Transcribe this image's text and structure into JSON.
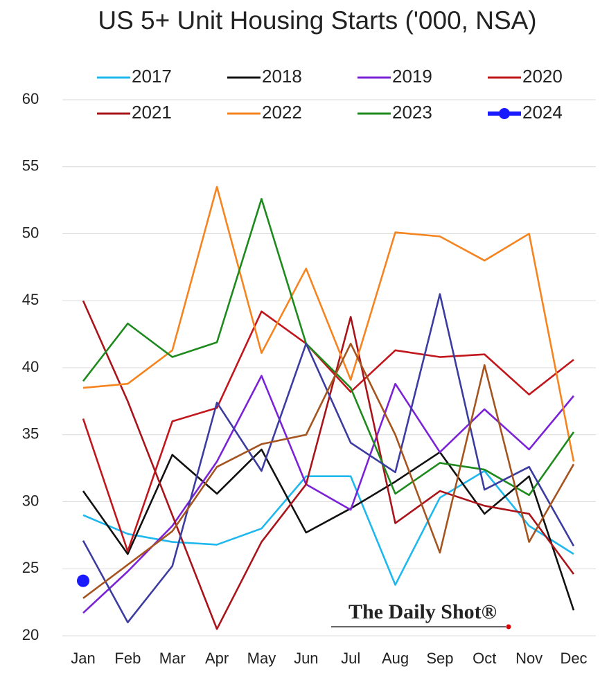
{
  "chart_data": {
    "type": "line",
    "title": "US 5+ Unit Housing Starts ('000, NSA)",
    "categories": [
      "Jan",
      "Feb",
      "Mar",
      "Apr",
      "May",
      "Jun",
      "Jul",
      "Aug",
      "Sep",
      "Oct",
      "Nov",
      "Dec"
    ],
    "series": [
      {
        "name": "2017",
        "color": "#1fb8ee",
        "values": [
          29.0,
          27.6,
          27.0,
          26.8,
          28.0,
          31.9,
          31.9,
          23.8,
          30.3,
          32.3,
          28.2,
          26.1
        ]
      },
      {
        "name": "2018",
        "color": "#111111",
        "values": [
          30.8,
          26.1,
          33.5,
          30.6,
          33.9,
          27.7,
          29.5,
          31.5,
          33.7,
          29.1,
          31.9,
          21.9
        ]
      },
      {
        "name": "2019",
        "color": "#7a22d6",
        "values": [
          21.7,
          24.8,
          28.2,
          33.0,
          39.4,
          31.3,
          29.4,
          38.8,
          33.7,
          36.9,
          33.9,
          37.9
        ]
      },
      {
        "name": "2020",
        "color": "#c0161c",
        "values": [
          36.2,
          26.3,
          36.0,
          37.0,
          44.2,
          41.8,
          38.2,
          41.3,
          40.8,
          41.0,
          38.0,
          40.6
        ]
      },
      {
        "name": "2021",
        "color": "#a8141a",
        "values": [
          45.0,
          37.5,
          29.0,
          20.5,
          27.0,
          31.3,
          43.8,
          28.4,
          30.8,
          29.7,
          29.1,
          24.6
        ]
      },
      {
        "name": "2022",
        "color": "#f5831f",
        "values": [
          38.5,
          38.8,
          41.3,
          53.5,
          41.1,
          47.4,
          39.1,
          50.1,
          49.8,
          48.0,
          50.0,
          33.0
        ]
      },
      {
        "name": "2023",
        "color": "#1e8a1e",
        "values": [
          39.0,
          43.3,
          40.8,
          41.9,
          52.6,
          41.8,
          38.5,
          30.6,
          32.9,
          32.4,
          30.5,
          35.2
        ]
      },
      {
        "name": "2024",
        "color": "#1a1aff",
        "marker": "circle",
        "values": [
          24.1,
          null,
          null,
          null,
          null,
          null,
          null,
          null,
          null,
          null,
          null,
          null
        ]
      },
      {
        "color": "#3c3ca0",
        "values": [
          27.1,
          21.0,
          25.2,
          37.4,
          32.3,
          41.8,
          34.4,
          32.2,
          45.5,
          30.9,
          32.6,
          26.7
        ]
      },
      {
        "color": "#a5541f",
        "values": [
          22.8,
          25.3,
          27.8,
          32.6,
          34.3,
          35.0,
          41.8,
          35.0,
          26.2,
          40.2,
          27.0,
          32.8
        ]
      }
    ],
    "ylim": [
      20,
      60
    ],
    "yticks": [
      20,
      25,
      30,
      35,
      40,
      45,
      50,
      55,
      60
    ],
    "grid": true,
    "annotation": "The Daily Shot®"
  }
}
